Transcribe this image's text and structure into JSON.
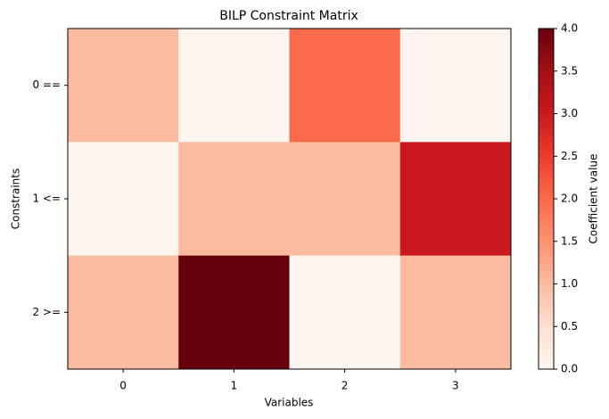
{
  "chart_data": {
    "type": "heatmap",
    "title": "BILP Constraint Matrix",
    "xlabel": "Variables",
    "ylabel": "Constraints",
    "x_categories": [
      "0",
      "1",
      "2",
      "3"
    ],
    "y_categories": [
      "0 ==",
      "1 <=",
      "2 >="
    ],
    "values": [
      [
        1,
        0,
        2,
        0
      ],
      [
        0,
        1,
        1,
        3
      ],
      [
        1,
        4,
        0,
        1
      ]
    ],
    "colormap": "Reds",
    "colorbar": {
      "label": "Coefficient value",
      "lim": [
        0,
        4
      ],
      "ticks": [
        {
          "value": 0,
          "label": "0.0"
        },
        0.5,
        {
          "value": 1,
          "label": "1.0"
        },
        1.5,
        {
          "value": 2,
          "label": "2.0"
        },
        2.5,
        {
          "value": 3,
          "label": "3.0"
        },
        3.5,
        {
          "value": 4,
          "label": "4.0"
        }
      ]
    }
  }
}
